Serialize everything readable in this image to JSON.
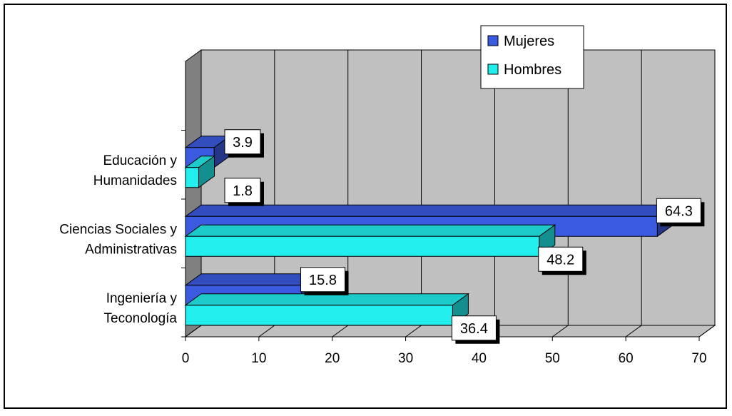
{
  "chart_data": {
    "type": "bar",
    "orientation": "horizontal",
    "three_d": true,
    "categories": [
      [
        "Educación y",
        "Humanidades"
      ],
      [
        "Ciencias Sociales y",
        "Administrativas"
      ],
      [
        "Ingeniería y",
        "Teconología"
      ]
    ],
    "series": [
      {
        "name": "Mujeres",
        "values": [
          3.9,
          64.3,
          15.8
        ],
        "labels": [
          "3.9",
          "64.3",
          "15.8"
        ],
        "color": "#3a5be0"
      },
      {
        "name": "Hombres",
        "values": [
          1.8,
          48.2,
          36.4
        ],
        "labels": [
          "1.8",
          "48.2",
          "36.4"
        ],
        "color": "#22eeee"
      }
    ],
    "xlim": [
      0,
      70
    ],
    "xticks": [
      "0",
      "10",
      "20",
      "30",
      "40",
      "50",
      "60",
      "70"
    ],
    "grid": true,
    "legend_position": "top-right",
    "colors": {
      "wall": "#c0c0c0",
      "side_wall": "#808080",
      "gridline": "#000000"
    },
    "title": "",
    "xlabel": "",
    "ylabel": ""
  }
}
